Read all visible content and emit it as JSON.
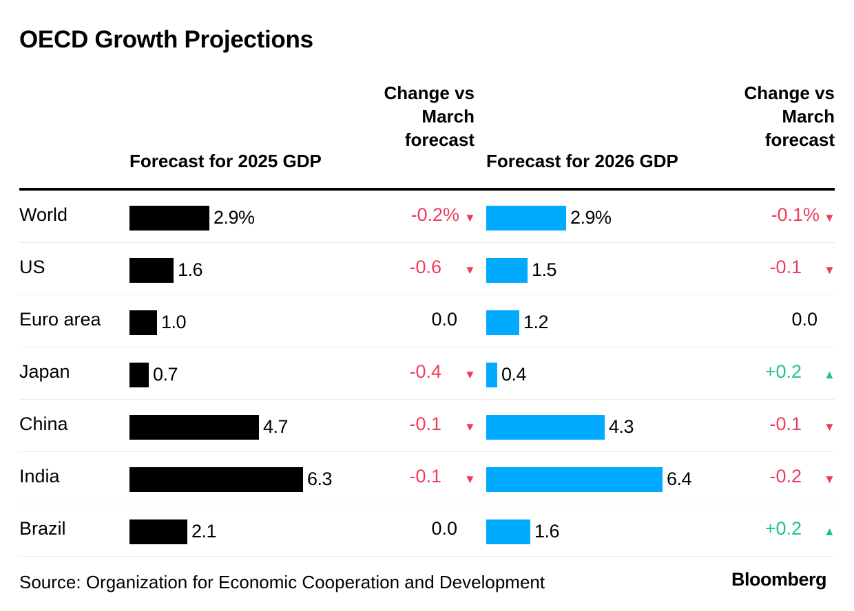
{
  "title": "OECD Growth Projections",
  "headers": {
    "forecast_2025": "Forecast for 2025 GDP",
    "change_2025": "Change vs March forecast",
    "forecast_2026": "Forecast for 2026 GDP",
    "change_2026": "Change vs March forecast"
  },
  "colors": {
    "bar_2025": "#000000",
    "bar_2026": "#00aaff",
    "negative": "#f03c5a",
    "positive": "#1ec482",
    "neutral": "#000000"
  },
  "chart_data": {
    "type": "table",
    "title": "OECD Growth Projections",
    "columns": [
      "Forecast for 2025 GDP",
      "Change vs March forecast",
      "Forecast for 2026 GDP",
      "Change vs March forecast"
    ],
    "rows": [
      {
        "region": "World",
        "gdp_2025": 2.9,
        "gdp_2025_label": "2.9%",
        "chg_2025": "-0.2%",
        "dir_2025": "down",
        "gdp_2026": 2.9,
        "gdp_2026_label": "2.9%",
        "chg_2026": "-0.1%",
        "dir_2026": "down"
      },
      {
        "region": "US",
        "gdp_2025": 1.6,
        "gdp_2025_label": "1.6",
        "chg_2025": "-0.6",
        "dir_2025": "down",
        "gdp_2026": 1.5,
        "gdp_2026_label": "1.5",
        "chg_2026": "-0.1",
        "dir_2026": "down"
      },
      {
        "region": "Euro area",
        "gdp_2025": 1.0,
        "gdp_2025_label": "1.0",
        "chg_2025": "0.0",
        "dir_2025": "none",
        "gdp_2026": 1.2,
        "gdp_2026_label": "1.2",
        "chg_2026": "0.0",
        "dir_2026": "none"
      },
      {
        "region": "Japan",
        "gdp_2025": 0.7,
        "gdp_2025_label": "0.7",
        "chg_2025": "-0.4",
        "dir_2025": "down",
        "gdp_2026": 0.4,
        "gdp_2026_label": "0.4",
        "chg_2026": "+0.2",
        "dir_2026": "up"
      },
      {
        "region": "China",
        "gdp_2025": 4.7,
        "gdp_2025_label": "4.7",
        "chg_2025": "-0.1",
        "dir_2025": "down",
        "gdp_2026": 4.3,
        "gdp_2026_label": "4.3",
        "chg_2026": "-0.1",
        "dir_2026": "down"
      },
      {
        "region": "India",
        "gdp_2025": 6.3,
        "gdp_2025_label": "6.3",
        "chg_2025": "-0.1",
        "dir_2025": "down",
        "gdp_2026": 6.4,
        "gdp_2026_label": "6.4",
        "chg_2026": "-0.2",
        "dir_2026": "down"
      },
      {
        "region": "Brazil",
        "gdp_2025": 2.1,
        "gdp_2025_label": "2.1",
        "chg_2025": "0.0",
        "dir_2025": "none",
        "gdp_2026": 1.6,
        "gdp_2026_label": "1.6",
        "chg_2026": "+0.2",
        "dir_2026": "up"
      }
    ]
  },
  "source": "Source: Organization for Economic Cooperation and Development",
  "brand": "Bloomberg"
}
